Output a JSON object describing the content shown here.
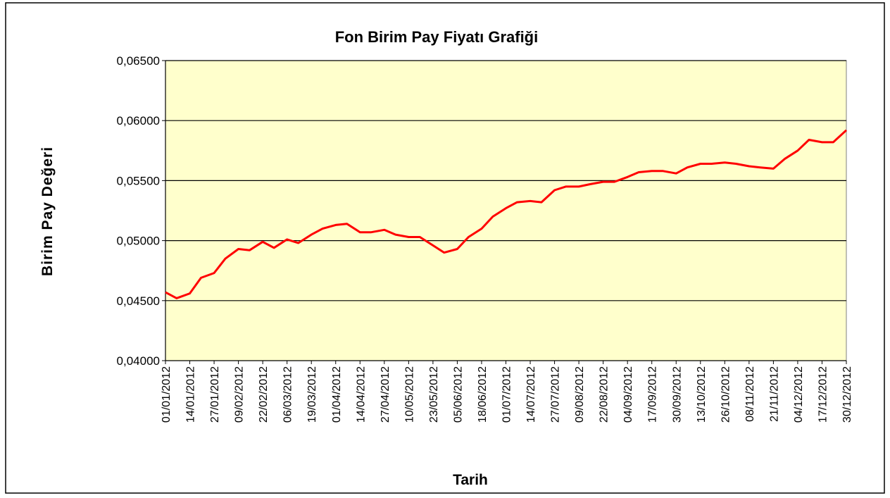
{
  "chart_data": {
    "type": "line",
    "title": "Fon Birim Pay Fiyatı Grafiği",
    "x_label": "Tarih",
    "y_label": "Birim Pay Değeri",
    "x": [
      "01/01/2012",
      "07/01/2012",
      "14/01/2012",
      "20/01/2012",
      "27/01/2012",
      "02/02/2012",
      "09/02/2012",
      "15/02/2012",
      "22/02/2012",
      "28/02/2012",
      "06/03/2012",
      "12/03/2012",
      "19/03/2012",
      "25/03/2012",
      "01/04/2012",
      "07/04/2012",
      "14/04/2012",
      "20/04/2012",
      "27/04/2012",
      "03/05/2012",
      "10/05/2012",
      "16/05/2012",
      "23/05/2012",
      "29/05/2012",
      "05/06/2012",
      "11/06/2012",
      "18/06/2012",
      "24/06/2012",
      "01/07/2012",
      "07/07/2012",
      "14/07/2012",
      "20/07/2012",
      "27/07/2012",
      "02/08/2012",
      "09/08/2012",
      "15/08/2012",
      "22/08/2012",
      "28/08/2012",
      "04/09/2012",
      "10/09/2012",
      "17/09/2012",
      "23/09/2012",
      "30/09/2012",
      "06/10/2012",
      "13/10/2012",
      "19/10/2012",
      "26/10/2012",
      "01/11/2012",
      "08/11/2012",
      "14/11/2012",
      "21/11/2012",
      "27/11/2012",
      "04/12/2012",
      "10/12/2012",
      "17/12/2012",
      "23/12/2012",
      "30/12/2012"
    ],
    "values": [
      0.0457,
      0.0452,
      0.0456,
      0.0469,
      0.0473,
      0.0485,
      0.0493,
      0.0492,
      0.0499,
      0.0494,
      0.0501,
      0.0498,
      0.0505,
      0.051,
      0.0513,
      0.0514,
      0.0507,
      0.0507,
      0.0509,
      0.0505,
      0.0503,
      0.0503,
      0.0496,
      0.049,
      0.0493,
      0.0503,
      0.051,
      0.052,
      0.0527,
      0.0532,
      0.0533,
      0.0532,
      0.0542,
      0.0545,
      0.0545,
      0.0547,
      0.0549,
      0.0549,
      0.0553,
      0.0557,
      0.0558,
      0.0558,
      0.0556,
      0.0561,
      0.0564,
      0.0564,
      0.0565,
      0.0564,
      0.0562,
      0.0561,
      0.056,
      0.0568,
      0.0575,
      0.0584,
      0.0582,
      0.0582,
      0.0592
    ],
    "color": "#ff0000",
    "xlim": [
      "01/01/2012",
      "30/12/2012"
    ],
    "xticks": [
      "01/01/2012",
      "14/01/2012",
      "27/01/2012",
      "09/02/2012",
      "22/02/2012",
      "06/03/2012",
      "19/03/2012",
      "01/04/2012",
      "14/04/2012",
      "27/04/2012",
      "10/05/2012",
      "23/05/2012",
      "05/06/2012",
      "18/06/2012",
      "01/07/2012",
      "14/07/2012",
      "27/07/2012",
      "09/08/2012",
      "22/08/2012",
      "04/09/2012",
      "17/09/2012",
      "30/09/2012",
      "13/10/2012",
      "26/10/2012",
      "08/11/2012",
      "21/11/2012",
      "04/12/2012",
      "17/12/2012",
      "30/12/2012"
    ],
    "ylim": [
      0.04,
      0.065
    ],
    "yticks": [
      {
        "value": 0.04,
        "label": "0,04000"
      },
      {
        "value": 0.045,
        "label": "0,04500"
      },
      {
        "value": 0.05,
        "label": "0,05000"
      },
      {
        "value": 0.055,
        "label": "0,05500"
      },
      {
        "value": 0.06,
        "label": "0,06000"
      },
      {
        "value": 0.065,
        "label": "0,06500"
      }
    ],
    "grid": true,
    "plot_background": "#ffffcc"
  }
}
